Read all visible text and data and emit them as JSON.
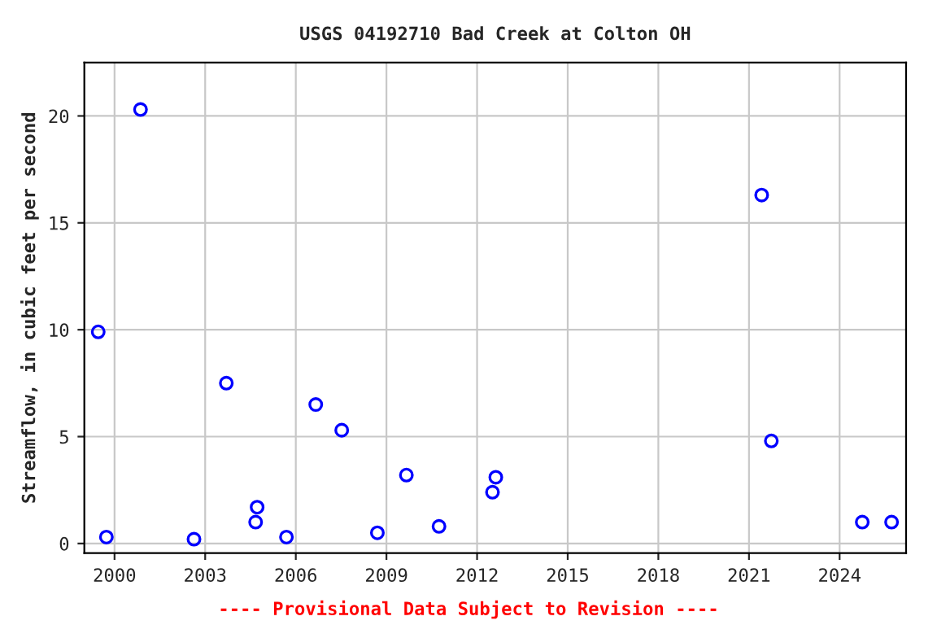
{
  "chart_data": {
    "type": "scatter",
    "title": "USGS 04192710 Bad Creek at Colton OH",
    "ylabel": "Streamflow, in cubic feet per second",
    "x": [
      1999.46,
      1999.73,
      2000.86,
      2002.63,
      2003.7,
      2004.67,
      2004.72,
      2005.69,
      2006.66,
      2007.52,
      2008.7,
      2009.66,
      2010.74,
      2012.51,
      2012.62,
      2021.42,
      2021.74,
      2024.75,
      2025.72
    ],
    "series": [
      {
        "color": "#0000ff",
        "values": [
          9.9,
          0.3,
          20.3,
          0.2,
          7.5,
          1.0,
          1.7,
          0.3,
          6.5,
          5.3,
          0.5,
          3.2,
          0.8,
          2.4,
          3.1,
          16.3,
          4.8,
          1.0,
          1.0
        ]
      }
    ],
    "xlim": [
      1999.0,
      2026.2
    ],
    "ylim": [
      -0.45,
      22.5
    ],
    "xticks": [
      2000,
      2003,
      2006,
      2009,
      2012,
      2015,
      2018,
      2021,
      2024
    ],
    "yticks": [
      0,
      5,
      10,
      15,
      20
    ],
    "grid": true,
    "marker": "circle",
    "legend": false,
    "annotations": [
      "---- Provisional Data Subject to Revision ----"
    ]
  }
}
